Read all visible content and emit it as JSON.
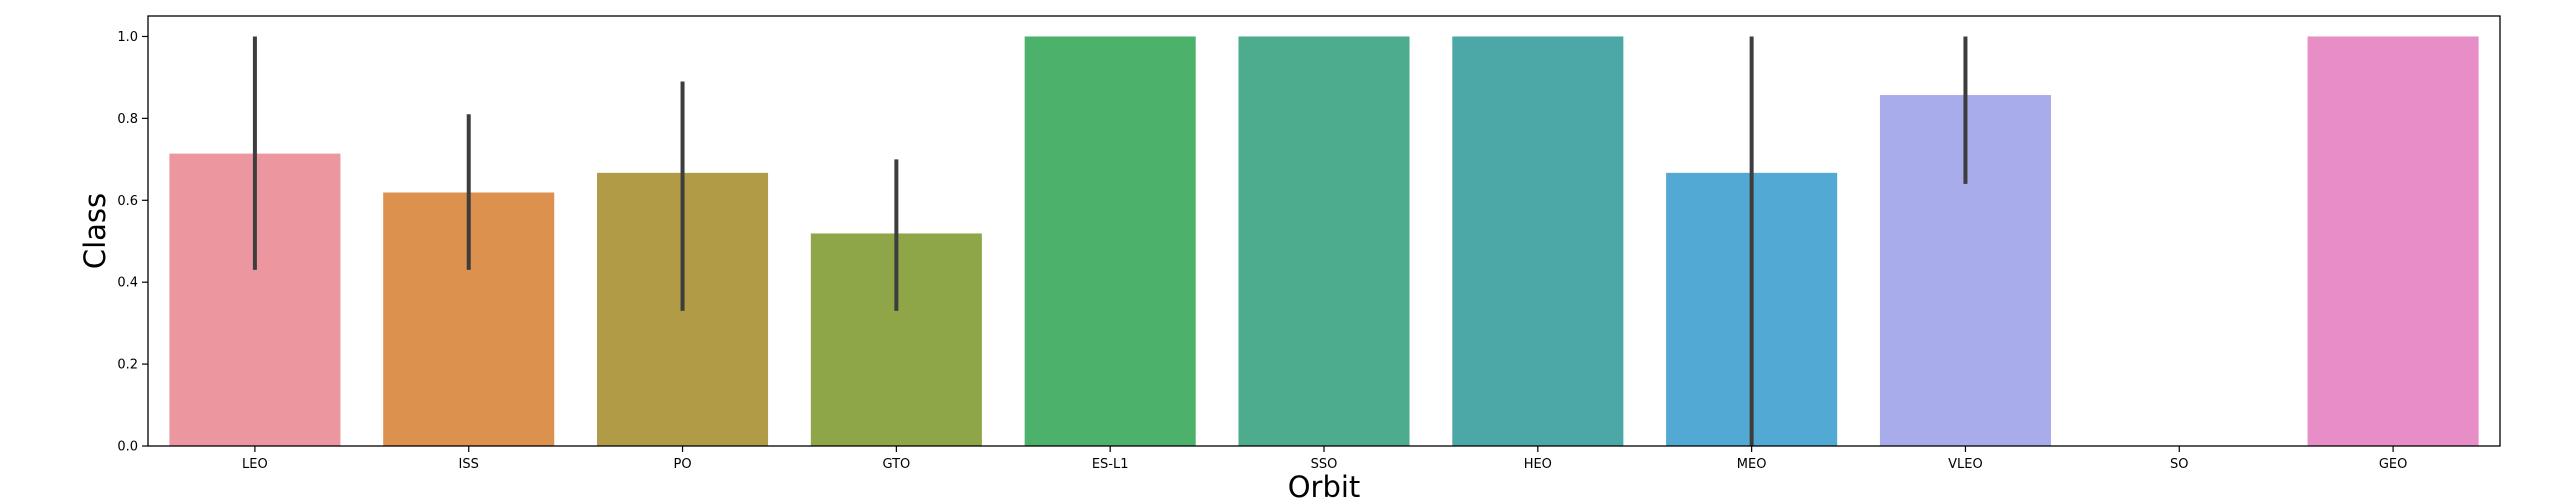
{
  "chart_data": {
    "type": "bar",
    "title": "",
    "xlabel": "Orbit",
    "ylabel": "Class",
    "ylim": [
      0,
      1.05
    ],
    "y_ticks": [
      "0.0",
      "0.2",
      "0.4",
      "0.6",
      "0.8",
      "1.0"
    ],
    "grid": false,
    "legend": "none",
    "categories": [
      "LEO",
      "ISS",
      "PO",
      "GTO",
      "ES-L1",
      "SSO",
      "HEO",
      "MEO",
      "VLEO",
      "SO",
      "GEO"
    ],
    "values": [
      0.714,
      0.619,
      0.667,
      0.519,
      1.0,
      1.0,
      1.0,
      0.667,
      0.857,
      0.0,
      1.0
    ],
    "error_low": [
      0.43,
      0.43,
      0.33,
      0.33,
      null,
      null,
      null,
      0.0,
      0.64,
      null,
      null
    ],
    "error_high": [
      1.0,
      0.81,
      0.89,
      0.7,
      null,
      null,
      null,
      1.0,
      1.0,
      null,
      null
    ],
    "colors": [
      "#ec979f",
      "#dc914e",
      "#b29b46",
      "#8ea647",
      "#4cb26b",
      "#4cac8d",
      "#4ca8a6",
      "#52a9d3",
      "#a9acea",
      "#d998e7",
      "#e88ec7"
    ],
    "error_color": "#3d3d3d"
  }
}
